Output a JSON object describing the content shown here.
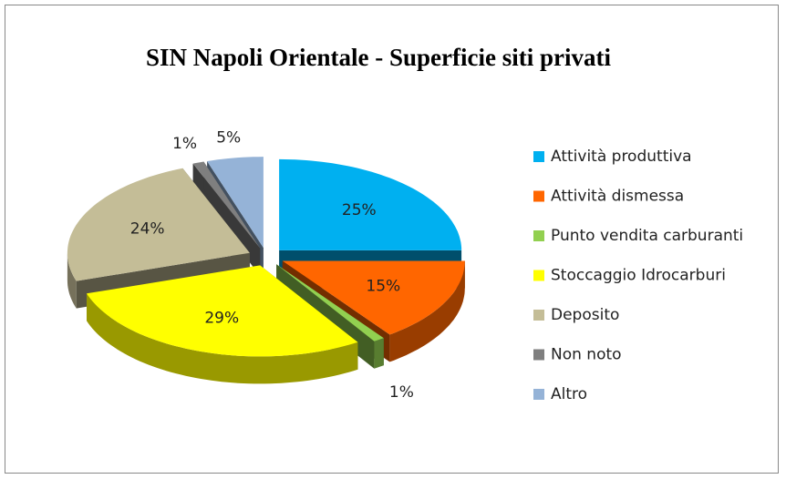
{
  "chart_data": {
    "type": "pie",
    "title": "SIN Napoli Orientale - Superficie siti privati",
    "categories": [
      "Attività produttiva",
      "Attività dismessa",
      "Punto vendita carburanti",
      "Stoccaggio Idrocarburi",
      "Deposito",
      "Non noto",
      "Altro"
    ],
    "values": [
      25,
      15,
      1,
      29,
      24,
      1,
      5
    ],
    "value_labels": [
      "25%",
      "15%",
      "1%",
      "29%",
      "24%",
      "1%",
      "5%"
    ],
    "colors": [
      "#00b0f0",
      "#ff6600",
      "#92d050",
      "#ffff00",
      "#c4bd97",
      "#7f7f7f",
      "#95b3d7"
    ],
    "legend": "right"
  }
}
